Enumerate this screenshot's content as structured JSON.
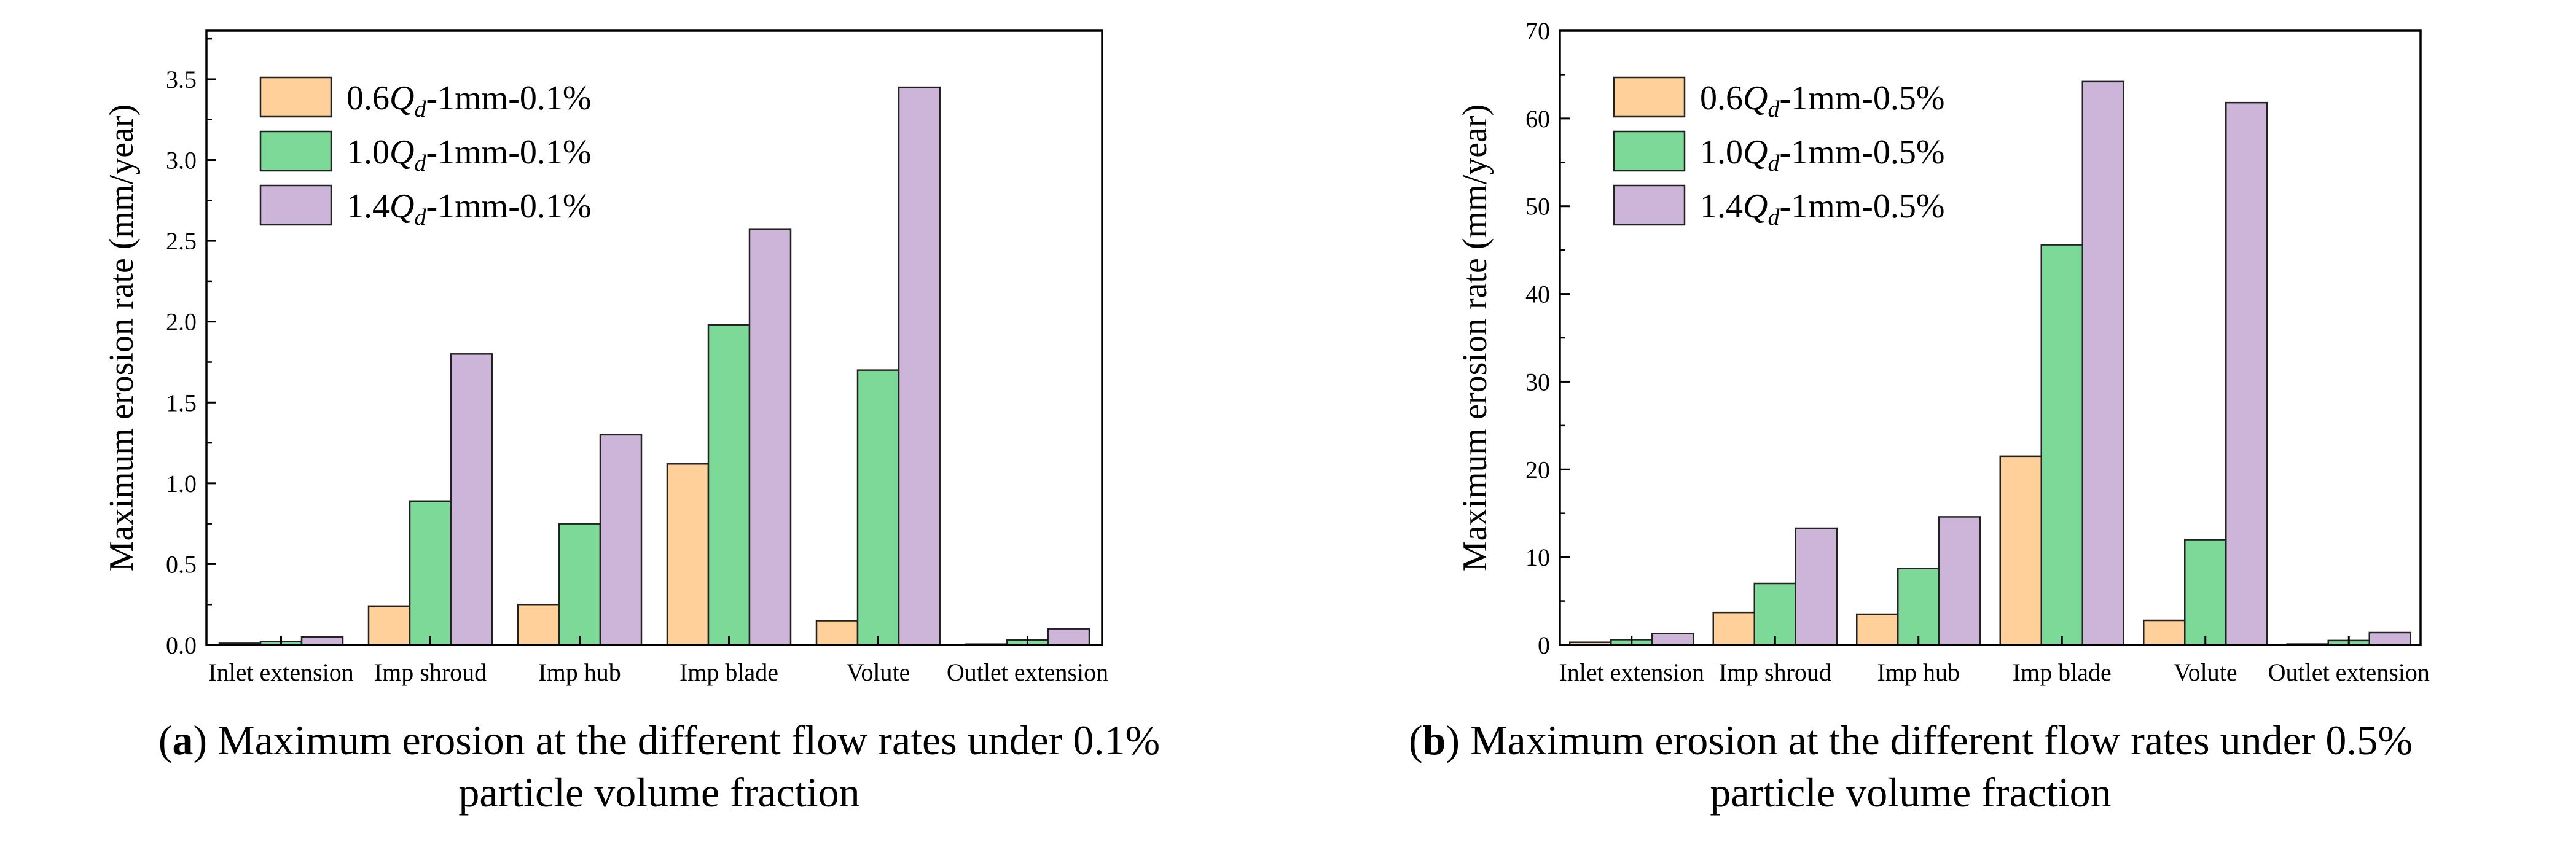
{
  "chart_data": [
    {
      "panel": "a",
      "type": "bar",
      "categories": [
        "Inlet extension",
        "Imp shroud",
        "Imp hub",
        "Imp blade",
        "Volute",
        "Outlet extension"
      ],
      "series": [
        {
          "name": "0.6Qd-1mm-0.1%",
          "legend": {
            "prefix": "0.6",
            "sym": "Q",
            "sub": "d",
            "suffix": "-1mm-0.1%"
          },
          "color": "#FFD09A",
          "values": [
            0.01,
            0.24,
            0.25,
            1.12,
            0.15,
            0.005
          ]
        },
        {
          "name": "1.0Qd-1mm-0.1%",
          "legend": {
            "prefix": "1.0",
            "sym": "Q",
            "sub": "d",
            "suffix": "-1mm-0.1%"
          },
          "color": "#7DD998",
          "values": [
            0.02,
            0.89,
            0.75,
            1.98,
            1.7,
            0.03
          ]
        },
        {
          "name": "1.4Qd-1mm-0.1%",
          "legend": {
            "prefix": "1.4",
            "sym": "Q",
            "sub": "d",
            "suffix": "-1mm-0.1%"
          },
          "color": "#CDB5DA",
          "values": [
            0.05,
            1.8,
            1.3,
            2.57,
            3.45,
            0.1
          ]
        }
      ],
      "ylabel": "Maximum erosion rate (mm/year)",
      "ylim": [
        0,
        3.8
      ],
      "yticks": [
        "0.0",
        "0.5",
        "1.0",
        "1.5",
        "2.0",
        "2.5",
        "3.0",
        "3.5"
      ],
      "legend_position": "top-left",
      "caption": {
        "letter": "a",
        "line1": "Maximum erosion at the different flow rates under 0.1%",
        "line2": "particle volume fraction"
      }
    },
    {
      "panel": "b",
      "type": "bar",
      "categories": [
        "Inlet extension",
        "Imp shroud",
        "Imp hub",
        "Imp blade",
        "Volute",
        "Outlet extension"
      ],
      "series": [
        {
          "name": "0.6Qd-1mm-0.5%",
          "legend": {
            "prefix": "0.6",
            "sym": "Q",
            "sub": "d",
            "suffix": "-1mm-0.5%"
          },
          "color": "#FFD09A",
          "values": [
            0.3,
            3.7,
            3.5,
            21.5,
            2.8,
            0.1
          ]
        },
        {
          "name": "1.0Qd-1mm-0.5%",
          "legend": {
            "prefix": "1.0",
            "sym": "Q",
            "sub": "d",
            "suffix": "-1mm-0.5%"
          },
          "color": "#7DD998",
          "values": [
            0.6,
            7.0,
            8.7,
            45.6,
            12.0,
            0.5
          ]
        },
        {
          "name": "1.4Qd-1mm-0.5%",
          "legend": {
            "prefix": "1.4",
            "sym": "Q",
            "sub": "d",
            "suffix": "-1mm-0.5%"
          },
          "color": "#CDB5DA",
          "values": [
            1.3,
            13.3,
            14.6,
            64.2,
            61.8,
            1.4
          ]
        }
      ],
      "ylabel": "Maximum erosion rate (mm/year)",
      "ylim": [
        0,
        70
      ],
      "yticks": [
        "0",
        "10",
        "20",
        "30",
        "40",
        "50",
        "60",
        "70"
      ],
      "legend_position": "top-left",
      "caption": {
        "letter": "b",
        "line1": "Maximum erosion at the different flow rates under 0.5%",
        "line2": "particle volume fraction"
      }
    }
  ]
}
